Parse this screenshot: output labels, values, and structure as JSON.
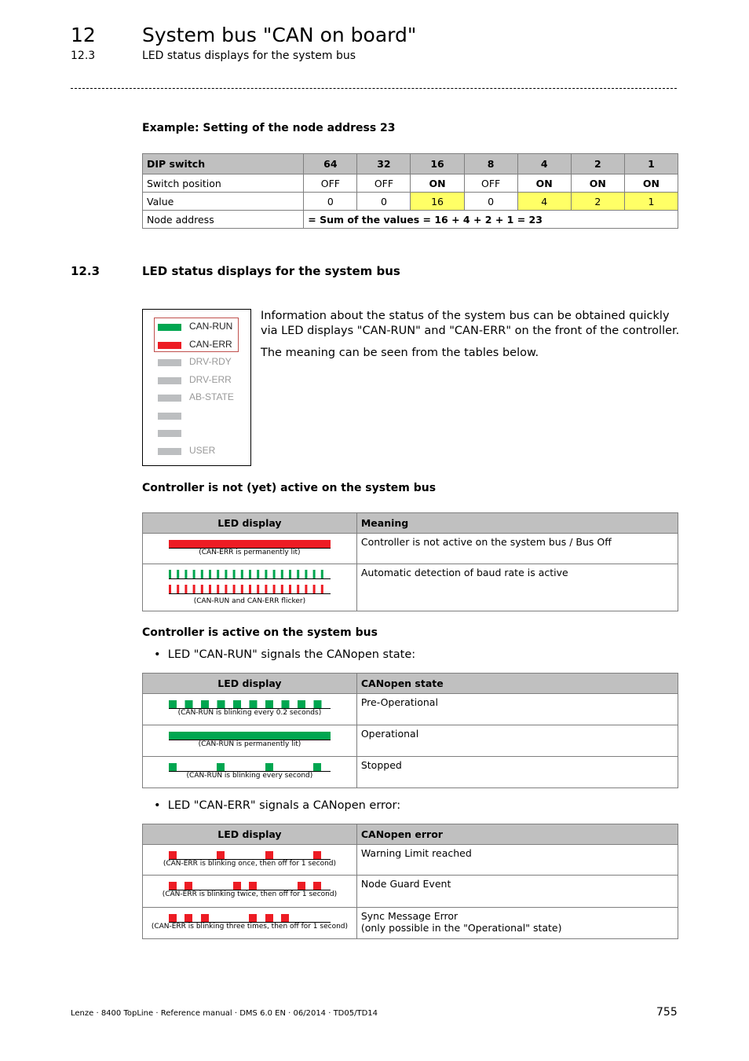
{
  "header": {
    "chapter_no": "12",
    "chapter_title": "System bus \"CAN on board\"",
    "section_no": "12.3",
    "section_title": "LED status displays for the system bus"
  },
  "example": {
    "heading": "Example: Setting of the node address 23",
    "header": [
      "DIP switch",
      "64",
      "32",
      "16",
      "8",
      "4",
      "2",
      "1"
    ],
    "switch_row": [
      "Switch position",
      "OFF",
      "OFF",
      "ON",
      "OFF",
      "ON",
      "ON",
      "ON"
    ],
    "value_row": [
      "Value",
      "0",
      "0",
      "16",
      "0",
      "4",
      "2",
      "1"
    ],
    "node_row": [
      "Node address",
      "= Sum of the values = 16 + 4 + 2 + 1 = 23"
    ],
    "highlight_color": "#ffff66"
  },
  "section": {
    "number": "12.3",
    "title": "LED status displays for the system bus"
  },
  "leds": [
    {
      "label": "CAN-RUN",
      "color": "#00a650"
    },
    {
      "label": "CAN-ERR",
      "color": "#ed1c24"
    },
    {
      "label": "DRV-RDY",
      "color": "#bcbec0"
    },
    {
      "label": "DRV-ERR",
      "color": "#bcbec0"
    },
    {
      "label": "AB-STATE",
      "color": "#bcbec0"
    },
    {
      "label": "",
      "color": "#bcbec0"
    },
    {
      "label": "",
      "color": "#bcbec0"
    },
    {
      "label": "USER",
      "color": "#bcbec0"
    }
  ],
  "intro": {
    "p1": "Information about the status of the system bus can be obtained quickly via LED displays \"CAN-RUN\" and \"CAN-ERR\" on the front of the controller.",
    "p2": "The meaning can be seen from the tables below."
  },
  "not_active": {
    "heading": "Controller is not (yet) active on the system bus",
    "col1": "LED display",
    "col2": "Meaning",
    "rows": [
      {
        "pattern": "err-permanent",
        "caption": "(CAN-ERR is permanently lit)",
        "meaning": "Controller is not active on the system bus / Bus Off"
      },
      {
        "pattern": "flicker",
        "caption": "(CAN-RUN and CAN-ERR flicker)",
        "meaning": "Automatic detection of baud rate is active"
      }
    ]
  },
  "active": {
    "heading": "Controller is active on the system bus",
    "bullet1": "LED \"CAN-RUN\" signals the CANopen state:",
    "run_table": {
      "col1": "LED display",
      "col2": "CANopen state",
      "rows": [
        {
          "pattern": "run-0.2s",
          "caption": "(CAN-RUN is blinking every 0.2 seconds)",
          "meaning": "Pre-Operational"
        },
        {
          "pattern": "run-permanent",
          "caption": "(CAN-RUN is permanently lit)",
          "meaning": "Operational"
        },
        {
          "pattern": "run-1s",
          "caption": "(CAN-RUN is blinking every second)",
          "meaning": "Stopped"
        }
      ]
    },
    "bullet2": "LED \"CAN-ERR\" signals a CANopen error:",
    "err_table": {
      "col1": "LED display",
      "col2": "CANopen error",
      "rows": [
        {
          "pattern": "err-1",
          "caption": "(CAN-ERR is blinking once, then off for 1 second)",
          "meaning": "Warning Limit reached",
          "meaning2": ""
        },
        {
          "pattern": "err-2",
          "caption": "(CAN-ERR is blinking twice, then off for 1 second)",
          "meaning": "Node Guard Event",
          "meaning2": ""
        },
        {
          "pattern": "err-3",
          "caption": "(CAN-ERR is blinking three times, then off for 1 second)",
          "meaning": "Sync Message Error",
          "meaning2": "(only possible in the \"Operational\" state)"
        }
      ]
    }
  },
  "colors": {
    "run": "#00a650",
    "err": "#ed1c24"
  },
  "footer": {
    "text": "Lenze · 8400 TopLine · Reference manual · DMS 6.0 EN · 06/2014 · TD05/TD14",
    "page": "755"
  }
}
